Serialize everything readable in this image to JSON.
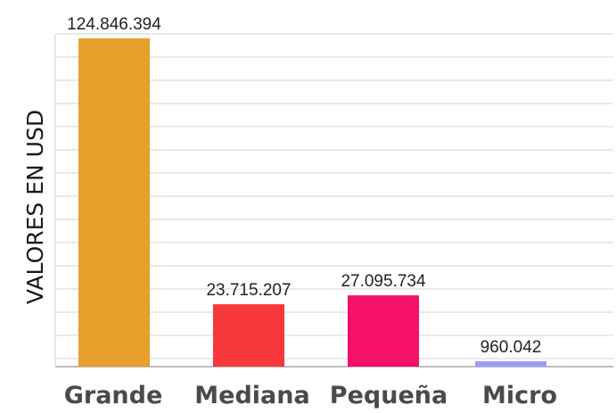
{
  "chart_data": {
    "type": "bar",
    "ylabel": "VALORES EN USD",
    "categories": [
      "Grande",
      "Mediana",
      "Pequeña",
      "Micro"
    ],
    "values": [
      124846394,
      23715207,
      27095734,
      960042
    ],
    "value_labels": [
      "124.846.394",
      "23.715.207",
      "27.095.734",
      "960.042"
    ],
    "colors": [
      "#e7a02b",
      "#f6383b",
      "#f5106a",
      "#9c9cf3"
    ],
    "ylim": [
      0,
      124846394
    ],
    "grid": true,
    "legend": "none"
  }
}
